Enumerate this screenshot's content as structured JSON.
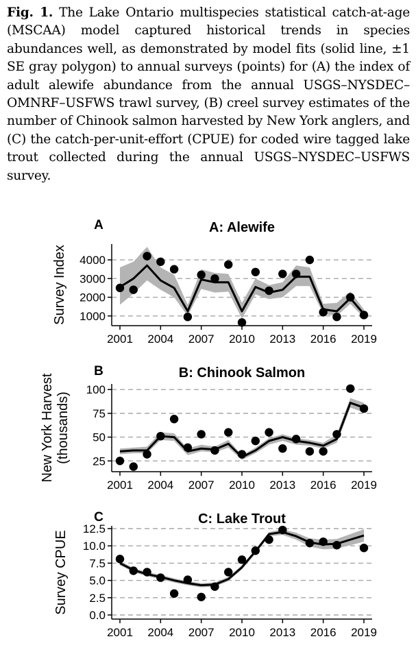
{
  "caption": {
    "label": "Fig. 1.",
    "text": "The Lake Ontario multispecies statistical catch-at-age (MSCAA) model captured historical trends in species abundances well, as demonstrated by model fits (solid line, ±1 SE gray polygon) to annual surveys (points) for (A) the index of adult alewife abundance from the annual USGS–NYSDEC–OMNRF–USFWS trawl survey, (B) creel survey estimates of the number of Chinook salmon harvested by New York anglers, and (C) the catch-per-unit-effort (CPUE) for coded wire tagged lake trout collected during the annual USGS–NYSDEC–USFWS survey."
  },
  "colors": {
    "band": "#b4b4b4",
    "line": "#000000",
    "grid": "#a6a6a6"
  },
  "chart_data": [
    {
      "type": "line",
      "panel_letter": "A",
      "title": "A: Alewife",
      "ylabel": "Survey Index",
      "xlabel": "",
      "xlim": [
        2001,
        2019
      ],
      "ylim": [
        700,
        4700
      ],
      "x_ticks": [
        "2001",
        "2004",
        "2007",
        "2010",
        "2013",
        "2016",
        "2019"
      ],
      "y_ticks": [
        1000,
        2000,
        3000,
        4000
      ],
      "y_tick_labels": [
        "1000",
        "2000",
        "3000",
        "4000"
      ],
      "grid": "horizontal dashed",
      "x": [
        2001,
        2002,
        2003,
        2004,
        2005,
        2006,
        2007,
        2008,
        2009,
        2010,
        2011,
        2012,
        2013,
        2014,
        2015,
        2016,
        2017,
        2018,
        2019
      ],
      "observed": [
        2500,
        2400,
        4200,
        3900,
        3500,
        950,
        3200,
        3000,
        3750,
        650,
        3350,
        2350,
        3250,
        3250,
        4000,
        1200,
        950,
        2000,
        1050
      ],
      "fitted": [
        2550,
        3000,
        3700,
        2900,
        2500,
        1250,
        2950,
        2800,
        2800,
        1250,
        2550,
        2250,
        2400,
        3100,
        3100,
        1350,
        1250,
        1950,
        1100
      ],
      "band_upper": [
        3600,
        3900,
        4700,
        3600,
        3200,
        1600,
        3500,
        3300,
        3250,
        1700,
        3000,
        2650,
        2800,
        3700,
        3600,
        1650,
        1700,
        2300,
        1350
      ],
      "band_lower": [
        1600,
        2200,
        2900,
        2400,
        2000,
        1000,
        2450,
        2250,
        2300,
        850,
        2150,
        1900,
        2000,
        2600,
        2600,
        1100,
        1000,
        1650,
        900
      ]
    },
    {
      "type": "line",
      "panel_letter": "B",
      "title": "B: Chinook Salmon",
      "ylabel": "New York Harvest (thousands)",
      "ylabel_lines": [
        "New York Harvest",
        "(thousands)"
      ],
      "xlabel": "",
      "xlim": [
        2001,
        2019
      ],
      "ylim": [
        18,
        103
      ],
      "x_ticks": [
        "2001",
        "2004",
        "2007",
        "2010",
        "2013",
        "2016",
        "2019"
      ],
      "y_ticks": [
        25,
        50,
        75,
        100
      ],
      "y_tick_labels": [
        "25",
        "50",
        "75",
        "100"
      ],
      "grid": "horizontal dashed",
      "x": [
        2001,
        2002,
        2003,
        2004,
        2005,
        2006,
        2007,
        2008,
        2009,
        2010,
        2011,
        2012,
        2013,
        2014,
        2015,
        2016,
        2017,
        2018,
        2019
      ],
      "observed": [
        25,
        19,
        32,
        51,
        69,
        39,
        53,
        36,
        55,
        32,
        46,
        55,
        38,
        48,
        35,
        35,
        53,
        101,
        80
      ],
      "fitted": [
        35,
        36,
        36,
        51,
        50,
        35,
        38,
        37,
        43,
        29,
        36,
        46,
        50,
        46,
        44,
        41,
        48,
        86,
        81
      ],
      "band_upper": [
        38,
        39,
        40,
        55,
        54,
        38,
        42,
        40,
        47,
        31,
        39,
        49,
        53,
        49,
        47,
        44,
        53,
        91,
        86
      ],
      "band_lower": [
        32,
        33,
        33,
        47,
        46,
        31,
        35,
        34,
        39,
        26,
        33,
        42,
        46,
        42,
        41,
        38,
        44,
        81,
        76
      ]
    },
    {
      "type": "line",
      "panel_letter": "C",
      "title": "C: Lake Trout",
      "ylabel": "Survey CPUE",
      "xlabel": "",
      "xlim": [
        2001,
        2019
      ],
      "ylim": [
        0,
        12.5
      ],
      "x_ticks": [
        "2001",
        "2004",
        "2007",
        "2010",
        "2013",
        "2016",
        "2019"
      ],
      "y_ticks": [
        0,
        2.5,
        5,
        7.5,
        10,
        12.5
      ],
      "y_tick_labels": [
        "0.0",
        "2.5",
        "5.0",
        "7.5",
        "10.0",
        "12.5"
      ],
      "grid": "horizontal dashed",
      "x": [
        2001,
        2002,
        2003,
        2004,
        2005,
        2006,
        2007,
        2008,
        2009,
        2010,
        2011,
        2012,
        2013,
        2014,
        2015,
        2016,
        2017,
        2018,
        2019
      ],
      "observed": [
        8.1,
        6.4,
        6.2,
        5.4,
        3.1,
        5.1,
        2.6,
        4.1,
        6.2,
        8.0,
        9.3,
        10.9,
        12.3,
        null,
        10.4,
        10.6,
        10.1,
        null,
        9.7
      ],
      "fitted": [
        7.5,
        6.5,
        5.9,
        5.5,
        5.0,
        4.6,
        4.3,
        4.4,
        5.2,
        6.9,
        9.2,
        11.7,
        12.0,
        11.4,
        10.5,
        10.2,
        10.3,
        10.9,
        11.5
      ],
      "band_upper": [
        7.8,
        6.8,
        6.2,
        5.8,
        5.3,
        4.9,
        4.6,
        4.7,
        5.5,
        7.2,
        9.5,
        12.0,
        12.4,
        11.9,
        11.1,
        10.9,
        11.0,
        11.7,
        12.4
      ],
      "band_lower": [
        7.2,
        6.2,
        5.6,
        5.2,
        4.7,
        4.3,
        4.0,
        4.1,
        4.9,
        6.6,
        8.9,
        11.4,
        11.6,
        10.9,
        9.9,
        9.5,
        9.6,
        10.1,
        10.6
      ]
    }
  ]
}
